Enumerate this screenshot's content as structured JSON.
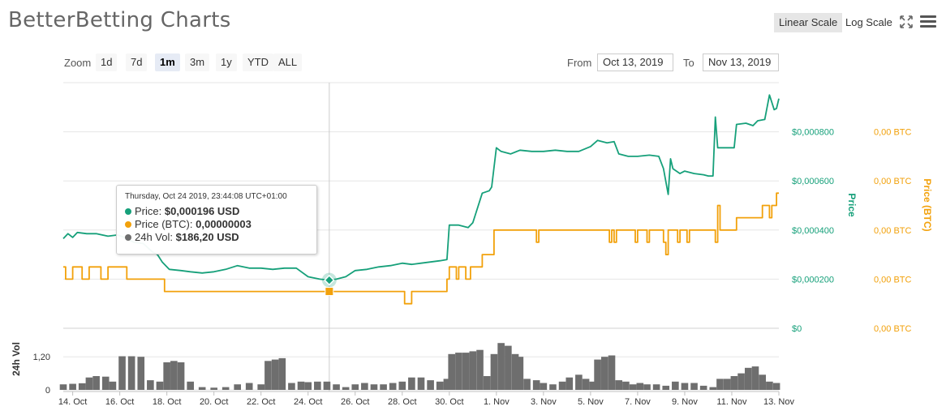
{
  "header": {
    "title": "BetterBetting Charts",
    "linear_scale_label": "Linear Scale",
    "log_scale_label": "Log Scale",
    "expand_icon": "expand-arrows-icon",
    "menu_icon": "hamburger-menu-icon"
  },
  "zoom": {
    "label": "Zoom",
    "buttons": [
      "1d",
      "7d",
      "1m",
      "3m",
      "1y",
      "YTD",
      "ALL"
    ],
    "active": "1m"
  },
  "range": {
    "from_label": "From",
    "from_value": "Oct 13, 2019",
    "to_label": "To",
    "to_value": "Nov 13, 2019"
  },
  "tooltip": {
    "header": "Thursday, Oct 24 2019, 23:44:08 UTC+01:00",
    "price_label": "Price:",
    "price_value": "$0,000196 USD",
    "btc_label": "Price (BTC):",
    "btc_value": "0,00000003",
    "vol_label": "24h Vol:",
    "vol_value": "$186,20 USD"
  },
  "colors": {
    "price": "#16a07a",
    "btc": "#f2a10b",
    "volume": "#6e6e6e",
    "grid": "#e6e6e6"
  },
  "chart_data": {
    "type": "line",
    "x_tick_labels": [
      "14. Oct",
      "16. Oct",
      "18. Oct",
      "20. Oct",
      "22. Oct",
      "24. Oct",
      "26. Oct",
      "28. Oct",
      "30. Oct",
      "1. Nov",
      "3. Nov",
      "5. Nov",
      "7. Nov",
      "9. Nov",
      "11. Nov",
      "13. Nov"
    ],
    "x_range_days": [
      13.6,
      44.0
    ],
    "price_axis": {
      "title": "Price",
      "ylim": [
        0,
        0.001
      ],
      "ticks": [
        0,
        0.0002,
        0.0004,
        0.0006,
        0.0008
      ],
      "tick_labels": [
        "$0",
        "$0,000200",
        "$0,000400",
        "$0,000600",
        "$0,000800"
      ]
    },
    "btc_axis": {
      "title": "Price (BTC)",
      "tick_labels": [
        "0,00 BTC",
        "0,00 BTC",
        "0,00 BTC",
        "0,00 BTC",
        "0,00 BTC"
      ]
    },
    "volume_axis": {
      "title": "24h Vol",
      "ticks": [
        0,
        1.2
      ],
      "tick_labels": [
        "0",
        "1,20"
      ],
      "ylim": [
        0,
        2.0
      ]
    },
    "grid": true,
    "legend": "none",
    "series": [
      {
        "name": "Price",
        "axis": "price",
        "points": [
          [
            13.6,
            0.000365
          ],
          [
            13.8,
            0.000385
          ],
          [
            14.0,
            0.00037
          ],
          [
            14.2,
            0.00039
          ],
          [
            14.6,
            0.000385
          ],
          [
            15.0,
            0.000385
          ],
          [
            15.5,
            0.000375
          ],
          [
            15.9,
            0.00038
          ],
          [
            16.2,
            0.00037
          ],
          [
            16.6,
            0.00035
          ],
          [
            17.0,
            0.000345
          ],
          [
            17.4,
            0.00031
          ],
          [
            17.6,
            0.0003
          ],
          [
            17.8,
            0.00027
          ],
          [
            18.1,
            0.00024
          ],
          [
            18.6,
            0.000235
          ],
          [
            19.0,
            0.00023
          ],
          [
            19.5,
            0.000225
          ],
          [
            20.0,
            0.00023
          ],
          [
            20.5,
            0.00024
          ],
          [
            21.0,
            0.000255
          ],
          [
            21.5,
            0.000245
          ],
          [
            22.0,
            0.000245
          ],
          [
            22.5,
            0.00024
          ],
          [
            23.0,
            0.000245
          ],
          [
            23.5,
            0.000245
          ],
          [
            24.0,
            0.00021
          ],
          [
            24.5,
            0.0002
          ],
          [
            24.9,
            0.000196
          ],
          [
            25.2,
            0.0002
          ],
          [
            25.6,
            0.00021
          ],
          [
            26.0,
            0.000235
          ],
          [
            26.5,
            0.00024
          ],
          [
            27.0,
            0.00025
          ],
          [
            27.5,
            0.000255
          ],
          [
            28.0,
            0.000265
          ],
          [
            28.4,
            0.00026
          ],
          [
            28.8,
            0.000265
          ],
          [
            29.2,
            0.00027
          ],
          [
            29.6,
            0.000275
          ],
          [
            29.9,
            0.00028
          ],
          [
            30.0,
            0.00042
          ],
          [
            30.4,
            0.00042
          ],
          [
            30.8,
            0.00041
          ],
          [
            31.0,
            0.00043
          ],
          [
            31.1,
            0.00046
          ],
          [
            31.4,
            0.00055
          ],
          [
            31.7,
            0.00056
          ],
          [
            31.8,
            0.000575
          ],
          [
            32.0,
            0.000735
          ],
          [
            32.2,
            0.00072
          ],
          [
            32.6,
            0.00071
          ],
          [
            33.0,
            0.000725
          ],
          [
            33.5,
            0.00072
          ],
          [
            34.0,
            0.00072
          ],
          [
            34.5,
            0.000725
          ],
          [
            35.0,
            0.00072
          ],
          [
            35.5,
            0.00072
          ],
          [
            36.0,
            0.00074
          ],
          [
            36.3,
            0.000765
          ],
          [
            36.7,
            0.000755
          ],
          [
            37.0,
            0.00076
          ],
          [
            37.2,
            0.00071
          ],
          [
            37.6,
            0.0007
          ],
          [
            38.0,
            0.0007
          ],
          [
            38.5,
            0.000705
          ],
          [
            38.9,
            0.0007
          ],
          [
            39.1,
            0.00065
          ],
          [
            39.3,
            0.000545
          ],
          [
            39.4,
            0.00069
          ],
          [
            39.5,
            0.00065
          ],
          [
            39.8,
            0.00063
          ],
          [
            40.0,
            0.00064
          ],
          [
            40.4,
            0.00063
          ],
          [
            40.8,
            0.000625
          ],
          [
            41.0,
            0.00062
          ],
          [
            41.2,
            0.00062
          ],
          [
            41.3,
            0.00086
          ],
          [
            41.4,
            0.000735
          ],
          [
            41.8,
            0.000735
          ],
          [
            42.1,
            0.000735
          ],
          [
            42.2,
            0.00083
          ],
          [
            42.6,
            0.000835
          ],
          [
            42.9,
            0.000825
          ],
          [
            43.1,
            0.000845
          ],
          [
            43.4,
            0.00085
          ],
          [
            43.6,
            0.00095
          ],
          [
            43.7,
            0.00092
          ],
          [
            43.8,
            0.00089
          ],
          [
            43.9,
            0.000895
          ],
          [
            44.0,
            0.000935
          ]
        ]
      },
      {
        "name": "Price (BTC)",
        "axis": "price",
        "points": [
          [
            13.6,
            0.00025
          ],
          [
            13.7,
            0.0002
          ],
          [
            13.9,
            0.0002
          ],
          [
            14.0,
            0.00025
          ],
          [
            14.3,
            0.00025
          ],
          [
            14.4,
            0.0002
          ],
          [
            14.6,
            0.0002
          ],
          [
            14.7,
            0.00025
          ],
          [
            15.1,
            0.00025
          ],
          [
            15.2,
            0.0002
          ],
          [
            15.4,
            0.0002
          ],
          [
            15.5,
            0.00025
          ],
          [
            16.2,
            0.00025
          ],
          [
            16.3,
            0.0002
          ],
          [
            17.8,
            0.0002
          ],
          [
            17.9,
            0.00015
          ],
          [
            24.9,
            0.00015
          ],
          [
            28.0,
            0.00015
          ],
          [
            28.1,
            0.0001
          ],
          [
            28.3,
            0.0001
          ],
          [
            28.4,
            0.00015
          ],
          [
            29.8,
            0.00015
          ],
          [
            29.9,
            0.0002
          ],
          [
            30.0,
            0.00025
          ],
          [
            30.2,
            0.00025
          ],
          [
            30.3,
            0.0002
          ],
          [
            30.4,
            0.00025
          ],
          [
            30.6,
            0.00025
          ],
          [
            30.7,
            0.0002
          ],
          [
            30.9,
            0.00025
          ],
          [
            31.2,
            0.00025
          ],
          [
            31.4,
            0.0003
          ],
          [
            31.8,
            0.0003
          ],
          [
            31.9,
            0.0004
          ],
          [
            33.6,
            0.0004
          ],
          [
            33.7,
            0.00035
          ],
          [
            33.8,
            0.0004
          ],
          [
            36.7,
            0.0004
          ],
          [
            36.8,
            0.00035
          ],
          [
            36.9,
            0.0004
          ],
          [
            37.0,
            0.00035
          ],
          [
            37.1,
            0.0004
          ],
          [
            37.8,
            0.0004
          ],
          [
            37.9,
            0.00035
          ],
          [
            38.0,
            0.0004
          ],
          [
            38.3,
            0.0004
          ],
          [
            38.4,
            0.00035
          ],
          [
            38.5,
            0.0004
          ],
          [
            39.0,
            0.0004
          ],
          [
            39.1,
            0.00035
          ],
          [
            39.2,
            0.0003
          ],
          [
            39.3,
            0.0004
          ],
          [
            39.6,
            0.0004
          ],
          [
            39.7,
            0.00035
          ],
          [
            39.8,
            0.0004
          ],
          [
            40.0,
            0.0004
          ],
          [
            40.1,
            0.00035
          ],
          [
            40.2,
            0.0004
          ],
          [
            41.2,
            0.0004
          ],
          [
            41.3,
            0.00035
          ],
          [
            41.4,
            0.0005
          ],
          [
            41.5,
            0.0004
          ],
          [
            42.1,
            0.0004
          ],
          [
            42.2,
            0.00045
          ],
          [
            43.2,
            0.00045
          ],
          [
            43.3,
            0.0005
          ],
          [
            43.5,
            0.0005
          ],
          [
            43.6,
            0.00045
          ],
          [
            43.7,
            0.0005
          ],
          [
            43.8,
            0.0005
          ],
          [
            43.9,
            0.00055
          ],
          [
            44.0,
            0.00055
          ]
        ]
      },
      {
        "name": "24h Vol",
        "axis": "volume",
        "type": "bar",
        "points": [
          [
            13.6,
            0.2
          ],
          [
            14.0,
            0.22
          ],
          [
            14.4,
            0.24
          ],
          [
            14.7,
            0.45
          ],
          [
            15.0,
            0.5
          ],
          [
            15.4,
            0.48
          ],
          [
            15.7,
            0.3
          ],
          [
            16.1,
            1.22
          ],
          [
            16.5,
            1.22
          ],
          [
            16.9,
            1.2
          ],
          [
            17.3,
            0.35
          ],
          [
            17.7,
            0.3
          ],
          [
            18.0,
            1.0
          ],
          [
            18.3,
            1.05
          ],
          [
            18.6,
            1.0
          ],
          [
            19.0,
            0.3
          ],
          [
            19.5,
            0.1
          ],
          [
            20.0,
            0.08
          ],
          [
            20.5,
            0.1
          ],
          [
            21.0,
            0.2
          ],
          [
            21.5,
            0.25
          ],
          [
            22.0,
            0.2
          ],
          [
            22.3,
            1.05
          ],
          [
            22.6,
            1.1
          ],
          [
            22.9,
            1.15
          ],
          [
            23.3,
            0.25
          ],
          [
            23.7,
            0.3
          ],
          [
            24.0,
            0.28
          ],
          [
            24.4,
            0.3
          ],
          [
            24.8,
            0.3
          ],
          [
            25.2,
            0.2
          ],
          [
            25.6,
            0.1
          ],
          [
            26.0,
            0.2
          ],
          [
            26.4,
            0.25
          ],
          [
            26.8,
            0.2
          ],
          [
            27.2,
            0.2
          ],
          [
            27.6,
            0.25
          ],
          [
            28.0,
            0.3
          ],
          [
            28.4,
            0.45
          ],
          [
            28.8,
            0.45
          ],
          [
            29.2,
            0.35
          ],
          [
            29.6,
            0.3
          ],
          [
            29.9,
            0.4
          ],
          [
            30.1,
            1.3
          ],
          [
            30.4,
            1.35
          ],
          [
            30.7,
            1.35
          ],
          [
            31.0,
            1.4
          ],
          [
            31.3,
            1.45
          ],
          [
            31.6,
            0.5
          ],
          [
            31.9,
            1.3
          ],
          [
            32.2,
            1.7
          ],
          [
            32.5,
            1.6
          ],
          [
            32.8,
            1.3
          ],
          [
            33.0,
            1.2
          ],
          [
            33.3,
            0.4
          ],
          [
            33.7,
            0.35
          ],
          [
            34.0,
            0.25
          ],
          [
            34.4,
            0.2
          ],
          [
            34.8,
            0.3
          ],
          [
            35.1,
            0.45
          ],
          [
            35.5,
            0.55
          ],
          [
            35.8,
            0.4
          ],
          [
            36.1,
            0.3
          ],
          [
            36.3,
            1.1
          ],
          [
            36.6,
            1.2
          ],
          [
            36.9,
            1.25
          ],
          [
            37.2,
            0.35
          ],
          [
            37.5,
            0.3
          ],
          [
            37.8,
            0.2
          ],
          [
            38.1,
            0.25
          ],
          [
            38.4,
            0.2
          ],
          [
            38.8,
            0.2
          ],
          [
            39.2,
            0.15
          ],
          [
            39.6,
            0.3
          ],
          [
            40.0,
            0.25
          ],
          [
            40.4,
            0.25
          ],
          [
            40.8,
            0.15
          ],
          [
            41.2,
            0.1
          ],
          [
            41.5,
            0.4
          ],
          [
            41.8,
            0.4
          ],
          [
            42.1,
            0.5
          ],
          [
            42.4,
            0.6
          ],
          [
            42.7,
            0.8
          ],
          [
            43.0,
            0.85
          ],
          [
            43.3,
            0.55
          ],
          [
            43.6,
            0.3
          ],
          [
            43.9,
            0.25
          ]
        ]
      }
    ],
    "hover": {
      "x_day": 24.9,
      "price": 0.000196,
      "btc_marker_level": 0.00015
    }
  }
}
